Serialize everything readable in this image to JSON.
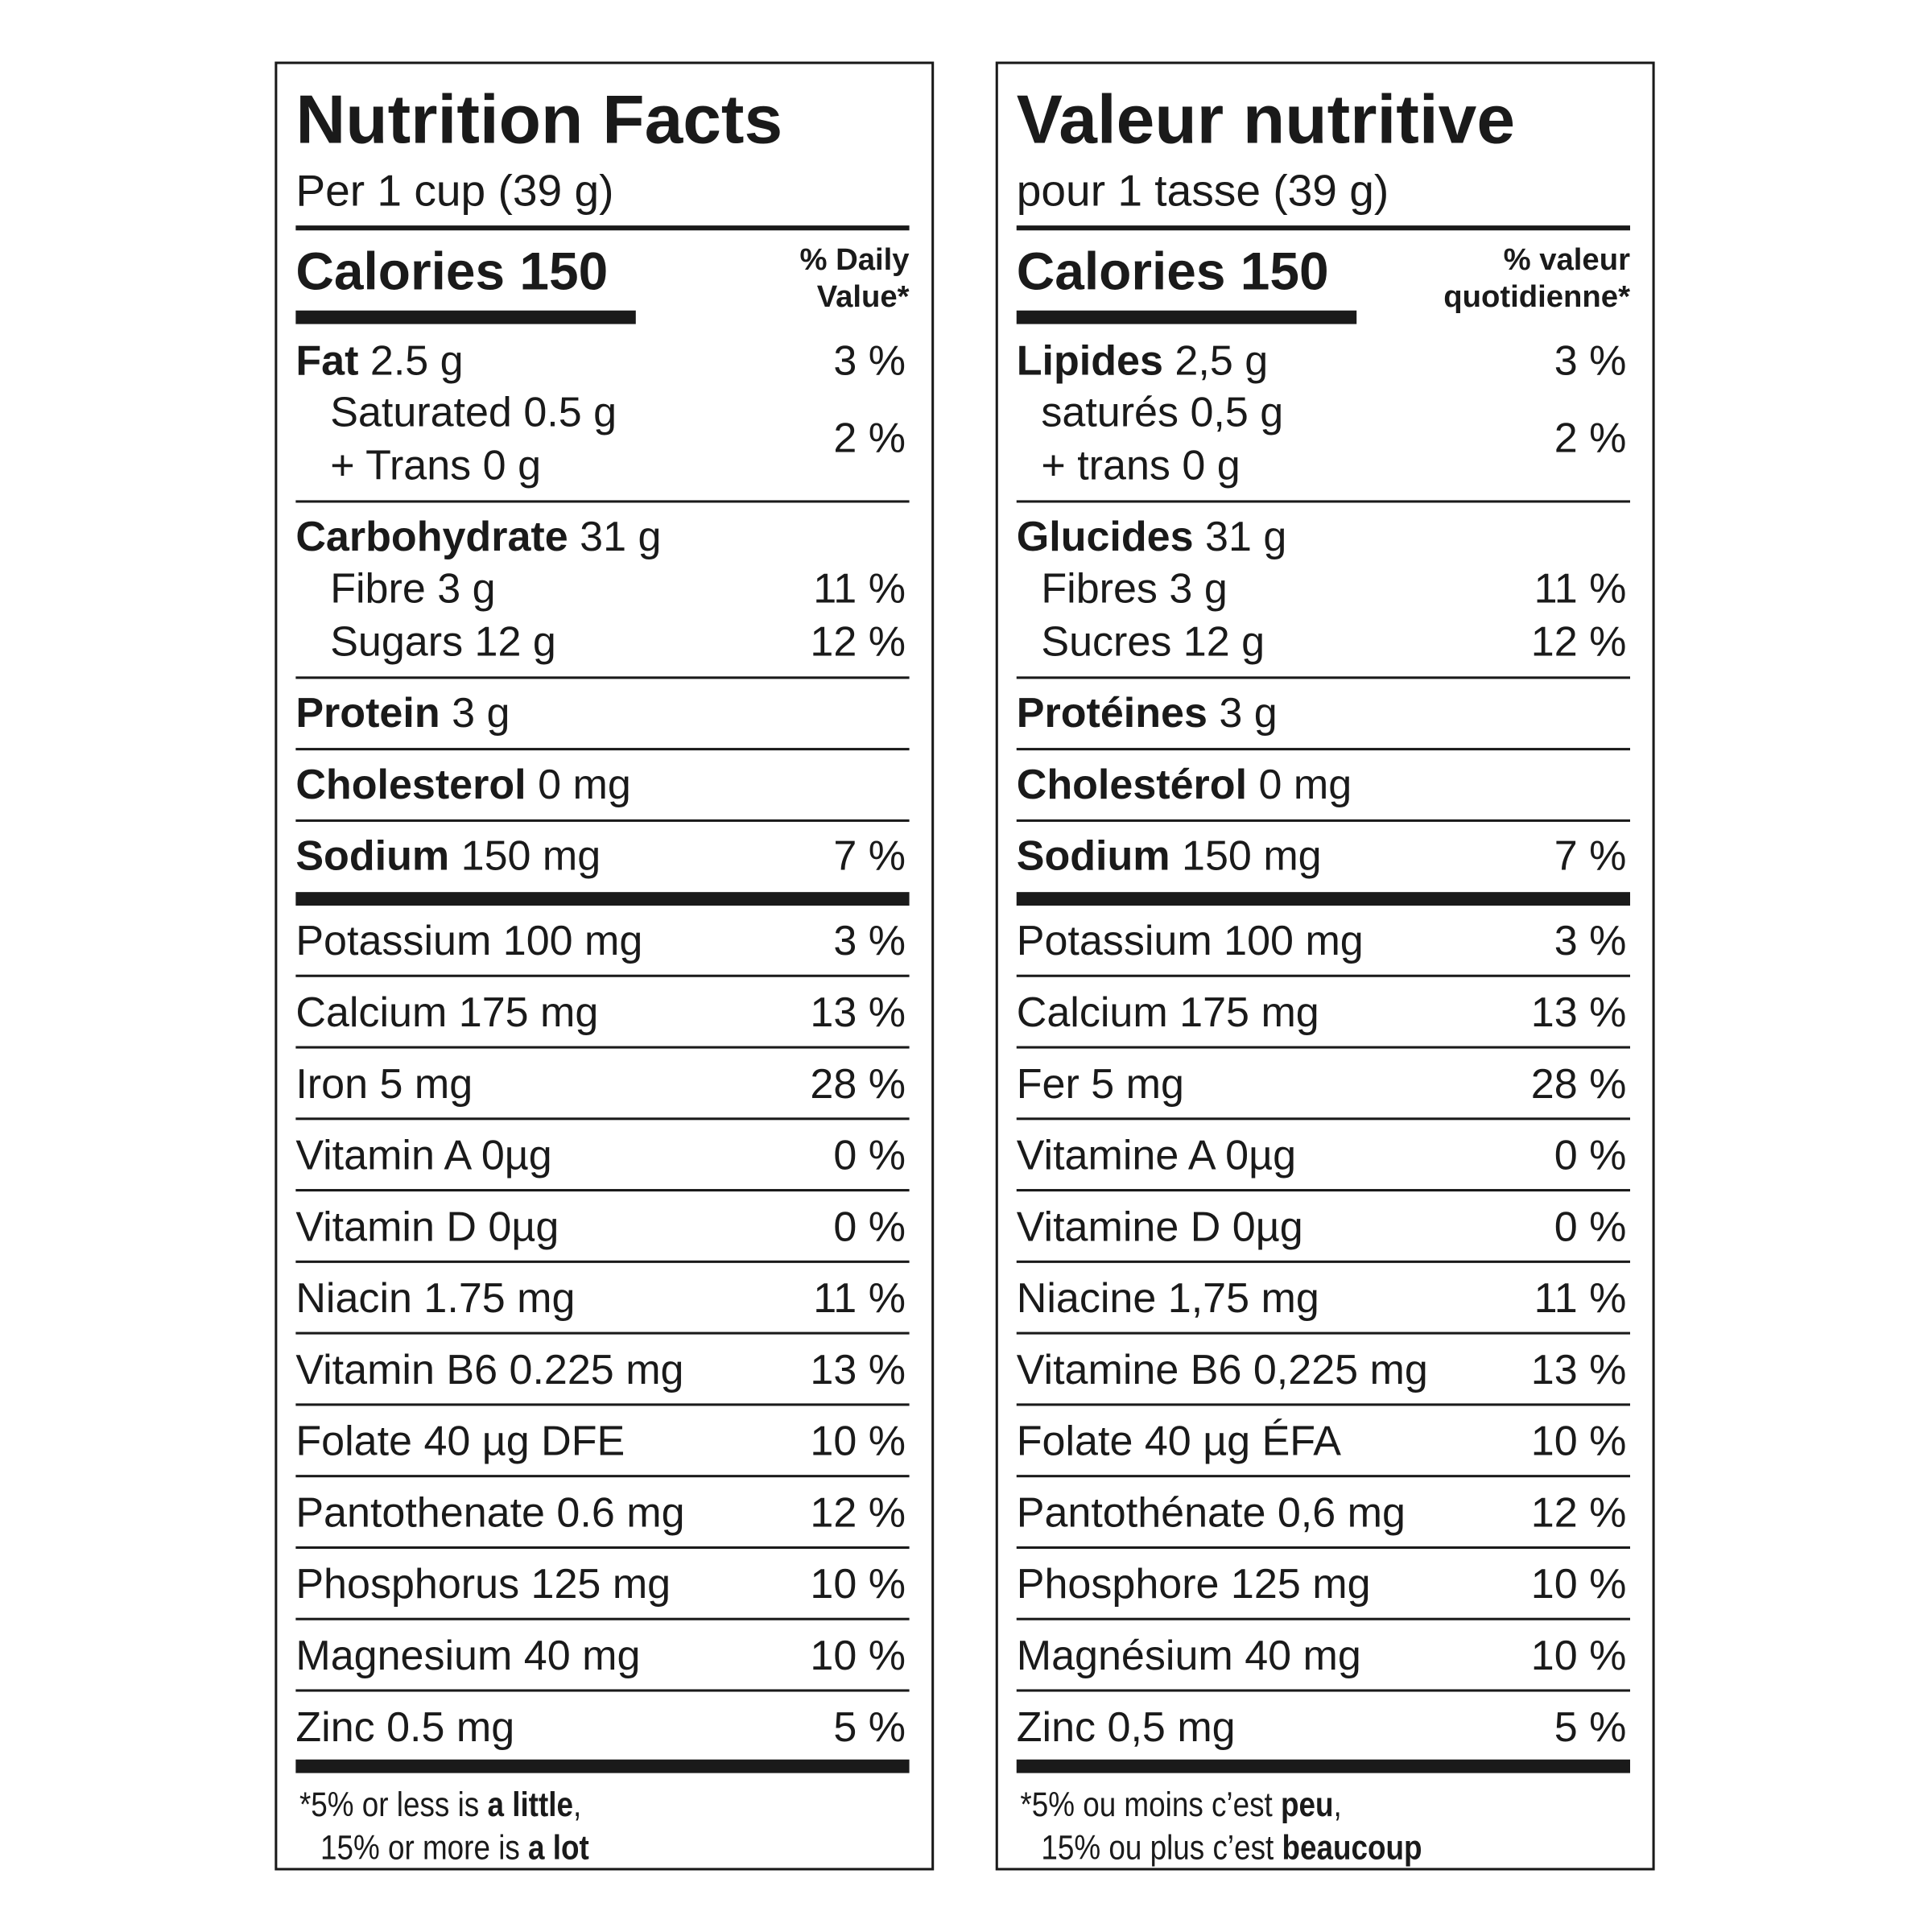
{
  "panels": [
    {
      "title": "Nutrition Facts",
      "serving": "Per 1 cup (39 g)",
      "calories": "Calories 150",
      "dv_header": [
        "% Daily",
        "Value*"
      ],
      "nutrients": [
        [
          {
            "name": "Fat",
            "amount": "2.5 g",
            "dv": "3 %"
          },
          {
            "lines": [
              "Saturated 0.5 g",
              "+ Trans 0 g"
            ],
            "dv": "2 %"
          }
        ],
        [
          {
            "name": "Carbohydrate",
            "amount": "31 g"
          },
          {
            "text": "Fibre 3 g",
            "dv": "11 %"
          },
          {
            "text": "Sugars 12 g",
            "dv": "12 %"
          }
        ],
        [
          {
            "name": "Protein",
            "amount": "3 g"
          }
        ],
        [
          {
            "name": "Cholesterol",
            "amount": "0 mg"
          }
        ],
        [
          {
            "name": "Sodium",
            "amount": "150 mg",
            "dv": "7 %"
          }
        ]
      ],
      "minerals": [
        {
          "text": "Potassium 100 mg",
          "dv": "3 %"
        },
        {
          "text": "Calcium 175 mg",
          "dv": "13 %"
        },
        {
          "text": "Iron 5 mg",
          "dv": "28 %"
        },
        {
          "text": "Vitamin A 0µg",
          "dv": "0 %"
        },
        {
          "text": "Vitamin D 0µg",
          "dv": "0 %"
        },
        {
          "text": "Niacin 1.75 mg",
          "dv": "11 %"
        },
        {
          "text": "Vitamin B6 0.225 mg",
          "dv": "13 %"
        },
        {
          "text": "Folate 40 µg DFE",
          "dv": "10 %"
        },
        {
          "text": "Pantothenate 0.6 mg",
          "dv": "12 %"
        },
        {
          "text": "Phosphorus 125 mg",
          "dv": "10 %"
        },
        {
          "text": "Magnesium 40 mg",
          "dv": "10 %"
        },
        {
          "text": "Zinc 0.5 mg",
          "dv": "5 %"
        }
      ],
      "footnote": [
        [
          {
            "text": "*5% or less is "
          },
          {
            "text": "a little",
            "bold": true
          },
          {
            "text": ","
          }
        ],
        [
          {
            "text": "15% or more is "
          },
          {
            "text": "a lot",
            "bold": true
          }
        ]
      ]
    },
    {
      "title": "Valeur nutritive",
      "serving": "pour 1 tasse (39 g)",
      "calories": "Calories 150",
      "dv_header": [
        "% valeur",
        "quotidienne*"
      ],
      "nutrients": [
        [
          {
            "name": "Lipides",
            "amount": "2,5 g",
            "dv": "3 %"
          },
          {
            "lines": [
              "saturés 0,5 g",
              "+ trans 0 g"
            ],
            "dv": "2 %"
          }
        ],
        [
          {
            "name": "Glucides",
            "amount": "31 g"
          },
          {
            "text": "Fibres 3 g",
            "dv": "11 %"
          },
          {
            "text": "Sucres 12 g",
            "dv": "12 %"
          }
        ],
        [
          {
            "name": "Protéines",
            "amount": "3 g"
          }
        ],
        [
          {
            "name": "Cholestérol",
            "amount": "0 mg"
          }
        ],
        [
          {
            "name": "Sodium",
            "amount": "150 mg",
            "dv": "7 %"
          }
        ]
      ],
      "minerals": [
        {
          "text": "Potassium 100 mg",
          "dv": "3 %"
        },
        {
          "text": "Calcium 175 mg",
          "dv": "13 %"
        },
        {
          "text": "Fer 5 mg",
          "dv": "28 %"
        },
        {
          "text": "Vitamine A 0µg",
          "dv": "0 %"
        },
        {
          "text": "Vitamine D 0µg",
          "dv": "0 %"
        },
        {
          "text": "Niacine 1,75 mg",
          "dv": "11 %"
        },
        {
          "text": "Vitamine B6 0,225 mg",
          "dv": "13 %"
        },
        {
          "text": "Folate 40 µg ÉFA",
          "dv": "10 %"
        },
        {
          "text": "Pantothénate 0,6 mg",
          "dv": "12 %"
        },
        {
          "text": "Phosphore 125 mg",
          "dv": "10 %"
        },
        {
          "text": "Magnésium 40 mg",
          "dv": "10 %"
        },
        {
          "text": "Zinc 0,5 mg",
          "dv": "5 %"
        }
      ],
      "footnote": [
        [
          {
            "text": "*5% ou moins c’est "
          },
          {
            "text": "peu",
            "bold": true
          },
          {
            "text": ","
          }
        ],
        [
          {
            "text": "15% ou plus c’est "
          },
          {
            "text": "beaucoup",
            "bold": true
          }
        ]
      ]
    }
  ]
}
